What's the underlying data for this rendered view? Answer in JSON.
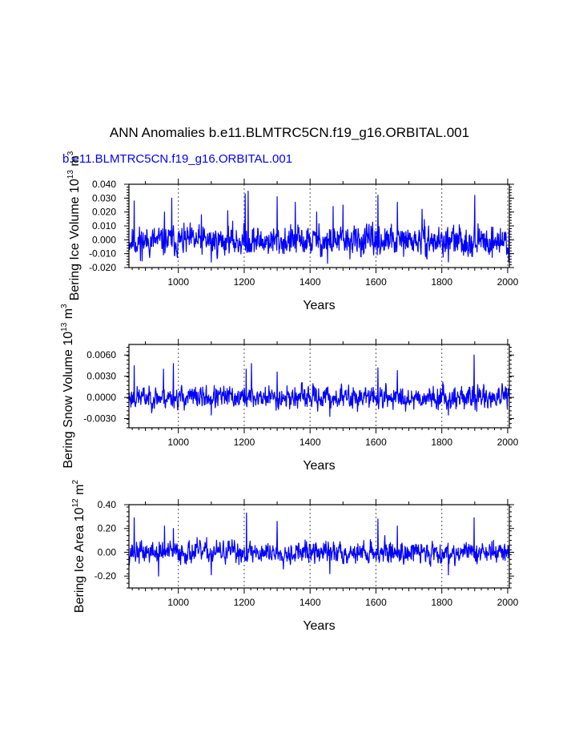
{
  "page": {
    "title": "ANN Anomalies b.e11.BLMTRC5CN.f19_g16.ORBITAL.001",
    "subtitle": "b.e11.BLMTRC5CN.f19_g16.ORBITAL.001"
  },
  "colors": {
    "series": "#0000ff",
    "axis": "#000000",
    "grid": "#555555",
    "subtitle": "#0000ff"
  },
  "chart_data": [
    {
      "type": "line",
      "series_name": "Bering Ice Volume",
      "ylabel": "Bering Ice Volume 10^13 m^3",
      "ylabel_main": "Bering Ice Volume 10",
      "ylabel_exp1": "13",
      "ylabel_unit": " m",
      "ylabel_exp2": "3",
      "xlabel": "Years",
      "xlim": [
        850,
        2005
      ],
      "ylim": [
        -0.02,
        0.04
      ],
      "xticks": [
        1000,
        1200,
        1400,
        1600,
        1800,
        2000
      ],
      "xtick_labels": [
        "1000",
        "1200",
        "1400",
        "1600",
        "1800",
        "2000"
      ],
      "yticks": [
        -0.02,
        -0.01,
        0.0,
        0.01,
        0.02,
        0.03,
        0.04
      ],
      "ytick_labels": [
        "-0.020",
        "-0.010",
        "0.000",
        "0.010",
        "0.020",
        "0.030",
        "0.040"
      ],
      "vlines": [
        1000,
        1200,
        1400,
        1600,
        1800,
        2000
      ],
      "data_x_range": [
        850,
        2005
      ],
      "baseline": -0.001,
      "noise_amplitude": 0.0075,
      "clip": [
        -0.018,
        0.036
      ],
      "seed": 11,
      "spikes": [
        {
          "x": 866,
          "y": 0.028
        },
        {
          "x": 958,
          "y": 0.02
        },
        {
          "x": 980,
          "y": 0.03
        },
        {
          "x": 1070,
          "y": 0.018
        },
        {
          "x": 1150,
          "y": 0.021
        },
        {
          "x": 1203,
          "y": 0.033
        },
        {
          "x": 1212,
          "y": 0.035
        },
        {
          "x": 1300,
          "y": 0.031
        },
        {
          "x": 1355,
          "y": 0.027
        },
        {
          "x": 1420,
          "y": 0.02
        },
        {
          "x": 1470,
          "y": 0.024
        },
        {
          "x": 1500,
          "y": 0.025
        },
        {
          "x": 1606,
          "y": 0.032
        },
        {
          "x": 1665,
          "y": 0.027
        },
        {
          "x": 1740,
          "y": 0.022
        },
        {
          "x": 1900,
          "y": 0.032
        },
        {
          "x": 885,
          "y": -0.015
        },
        {
          "x": 1100,
          "y": -0.016
        },
        {
          "x": 1453,
          "y": -0.017
        },
        {
          "x": 1820,
          "y": -0.016
        },
        {
          "x": 2003,
          "y": -0.016
        }
      ]
    },
    {
      "type": "line",
      "series_name": "Bering Snow Volume",
      "ylabel": "Bering Snow Volume 10^13 m^3",
      "ylabel_main": "Bering Snow Volume 10",
      "ylabel_exp1": "13",
      "ylabel_unit": " m",
      "ylabel_exp2": "3",
      "xlabel": "Years",
      "xlim": [
        850,
        2005
      ],
      "ylim": [
        -0.0043,
        0.0075
      ],
      "xticks": [
        1000,
        1200,
        1400,
        1600,
        1800,
        2000
      ],
      "xtick_labels": [
        "1000",
        "1200",
        "1400",
        "1600",
        "1800",
        "2000"
      ],
      "yticks": [
        -0.003,
        0.0,
        0.003,
        0.006
      ],
      "ytick_labels": [
        "-0.0030",
        "0.0000",
        "0.0030",
        "0.0060"
      ],
      "vlines": [
        1000,
        1200,
        1400,
        1600,
        1800,
        2000
      ],
      "data_x_range": [
        850,
        2005
      ],
      "baseline": 0.0,
      "noise_amplitude": 0.0011,
      "clip": [
        -0.0029,
        0.0062
      ],
      "seed": 23,
      "spikes": [
        {
          "x": 866,
          "y": 0.0045
        },
        {
          "x": 955,
          "y": 0.004
        },
        {
          "x": 985,
          "y": 0.0048
        },
        {
          "x": 1206,
          "y": 0.004
        },
        {
          "x": 1222,
          "y": 0.0048
        },
        {
          "x": 1300,
          "y": 0.0036
        },
        {
          "x": 1606,
          "y": 0.0042
        },
        {
          "x": 1665,
          "y": 0.0038
        },
        {
          "x": 1898,
          "y": 0.006
        },
        {
          "x": 1100,
          "y": -0.0025
        },
        {
          "x": 1460,
          "y": -0.0027
        },
        {
          "x": 1820,
          "y": -0.0025
        }
      ]
    },
    {
      "type": "line",
      "series_name": "Bering Ice Area",
      "ylabel": "Bering Ice Area 10^12 m^2",
      "ylabel_main": "Bering Ice Area 10",
      "ylabel_exp1": "12",
      "ylabel_unit": " m",
      "ylabel_exp2": "2",
      "xlabel": "Years",
      "xlim": [
        850,
        2005
      ],
      "ylim": [
        -0.3,
        0.4
      ],
      "xticks": [
        1000,
        1200,
        1400,
        1600,
        1800,
        2000
      ],
      "xtick_labels": [
        "1000",
        "1200",
        "1400",
        "1600",
        "1800",
        "2000"
      ],
      "yticks": [
        -0.2,
        0.0,
        0.2,
        0.4
      ],
      "ytick_labels": [
        "-0.20",
        "0.00",
        "0.20",
        "0.40"
      ],
      "vlines": [
        1000,
        1200,
        1400,
        1600,
        1800,
        2000
      ],
      "data_x_range": [
        850,
        2005
      ],
      "baseline": 0.0,
      "noise_amplitude": 0.065,
      "clip": [
        -0.2,
        0.33
      ],
      "seed": 37,
      "spikes": [
        {
          "x": 866,
          "y": 0.29
        },
        {
          "x": 958,
          "y": 0.22
        },
        {
          "x": 985,
          "y": 0.2
        },
        {
          "x": 1207,
          "y": 0.33
        },
        {
          "x": 1300,
          "y": 0.26
        },
        {
          "x": 1606,
          "y": 0.28
        },
        {
          "x": 1665,
          "y": 0.22
        },
        {
          "x": 1898,
          "y": 0.29
        },
        {
          "x": 940,
          "y": -0.2
        },
        {
          "x": 1100,
          "y": -0.19
        },
        {
          "x": 1460,
          "y": -0.18
        },
        {
          "x": 1820,
          "y": -0.19
        }
      ]
    }
  ]
}
